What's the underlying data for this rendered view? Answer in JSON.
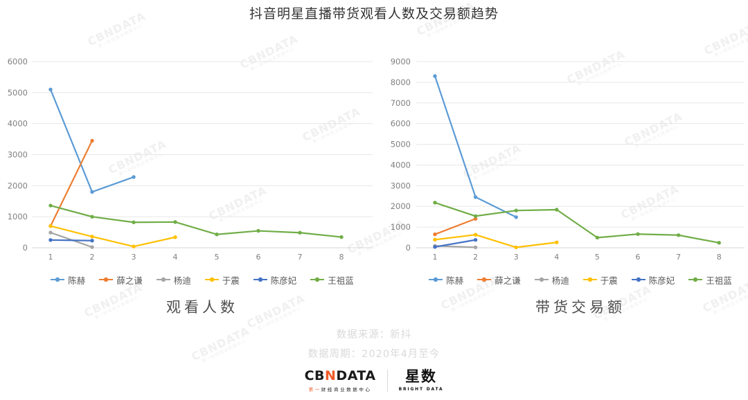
{
  "page": {
    "title": "抖音明星直播带货观看人数及交易额趋势",
    "watermark": {
      "text": "CBNDATA",
      "subtext": "第一财经商业数据中心"
    }
  },
  "colors": {
    "grid": "#e7e7e7",
    "axis_line": "#d4d4d4",
    "tick_label": "#808080",
    "legend_label": "#595959"
  },
  "chart_data": [
    {
      "type": "line",
      "title": "观看人数",
      "x": [
        1,
        2,
        3,
        4,
        5,
        6,
        7,
        8
      ],
      "xlabel": "",
      "ylabel": "",
      "ylim": [
        0,
        6000
      ],
      "ytick_step": 1000,
      "yticks": [
        0,
        1000,
        2000,
        3000,
        4000,
        5000,
        6000
      ],
      "grid": true,
      "legend_position": "bottom",
      "series": [
        {
          "name": "陈赫",
          "color": "#5B9BD5",
          "values": [
            5100,
            1800,
            2280
          ]
        },
        {
          "name": "薛之谦",
          "color": "#ED7D31",
          "values": [
            700,
            3450
          ]
        },
        {
          "name": "杨迪",
          "color": "#A5A5A5",
          "values": [
            490,
            20
          ]
        },
        {
          "name": "于震",
          "color": "#FFC000",
          "values": [
            700,
            360,
            40,
            340
          ]
        },
        {
          "name": "陈彦妃",
          "color": "#4472C4",
          "values": [
            250,
            230
          ]
        },
        {
          "name": "王祖蓝",
          "color": "#70AD47",
          "values": [
            1360,
            1000,
            820,
            830,
            430,
            545,
            485,
            345
          ]
        }
      ]
    },
    {
      "type": "line",
      "title": "带货交易额",
      "x": [
        1,
        2,
        3,
        4,
        5,
        6,
        7,
        8
      ],
      "xlabel": "",
      "ylabel": "",
      "ylim": [
        0,
        9000
      ],
      "ytick_step": 1000,
      "yticks": [
        0,
        1000,
        2000,
        3000,
        4000,
        5000,
        6000,
        7000,
        8000,
        9000
      ],
      "grid": true,
      "legend_position": "bottom",
      "series": [
        {
          "name": "陈赫",
          "color": "#5B9BD5",
          "values": [
            8300,
            2450,
            1480
          ]
        },
        {
          "name": "薛之谦",
          "color": "#ED7D31",
          "values": [
            650,
            1400
          ]
        },
        {
          "name": "杨迪",
          "color": "#A5A5A5",
          "values": [
            90,
            20
          ]
        },
        {
          "name": "于震",
          "color": "#FFC000",
          "values": [
            390,
            630,
            20,
            260
          ]
        },
        {
          "name": "陈彦妃",
          "color": "#4472C4",
          "values": [
            40,
            380
          ]
        },
        {
          "name": "王祖蓝",
          "color": "#70AD47",
          "values": [
            2180,
            1530,
            1800,
            1840,
            490,
            660,
            610,
            240
          ]
        }
      ]
    }
  ],
  "footer": {
    "source_line": "数据来源：新抖",
    "period_line": "数据周期：2020年4月至今",
    "logo_cbn": {
      "text_cb": "CB",
      "text_n": "N",
      "text_data": "DATA",
      "sub_first": "第一",
      "sub_rest": "财经商业数据中心"
    },
    "logo_xingshu": {
      "text": "星数",
      "subtext": "BRIGHT DATA"
    }
  }
}
